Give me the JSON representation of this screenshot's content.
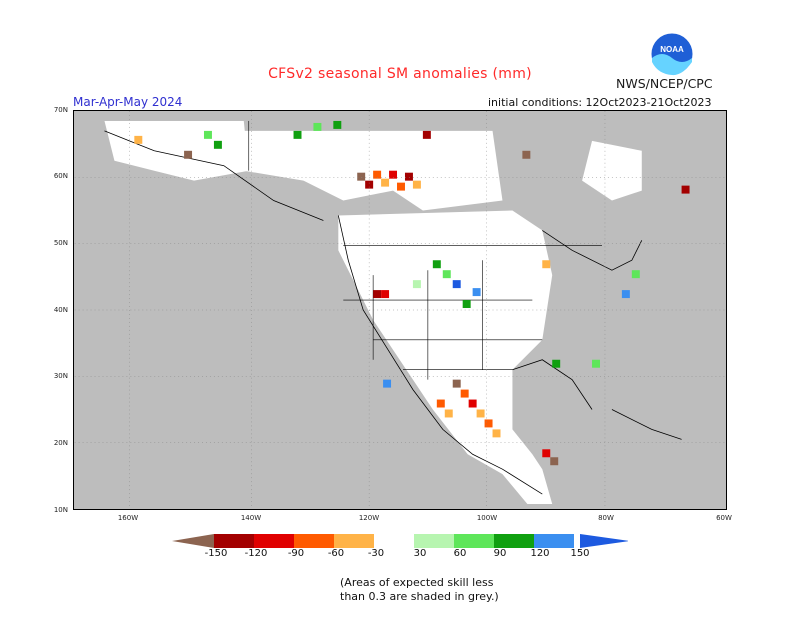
{
  "header": {
    "title": "CFSv2 seasonal SM anomalies (mm)",
    "org": "NWS/NCEP/CPC",
    "period": "Mar-Apr-May 2024",
    "initial_conditions": "initial conditions: 12Oct2023-21Oct2023",
    "logo_text": "NOAA"
  },
  "axes": {
    "lat_labels": [
      "70N",
      "60N",
      "50N",
      "40N",
      "30N",
      "20N",
      "10N"
    ],
    "lon_labels": [
      "160W",
      "140W",
      "120W",
      "100W",
      "80W",
      "60W"
    ]
  },
  "legend": {
    "ticks": [
      "-150",
      "-120",
      "-90",
      "-60",
      "-30",
      "30",
      "60",
      "90",
      "120",
      "150"
    ],
    "colors": [
      "#8c6450",
      "#a30000",
      "#e00000",
      "#ff5a00",
      "#ffb347",
      "#ffffff",
      "#b7f5b0",
      "#5ee65a",
      "#10a010",
      "#3b8ff0",
      "#1d5ae0"
    ]
  },
  "note": {
    "line1": "(Areas of expected skill less",
    "line2": "than 0.3 are shaded in grey.)"
  },
  "colors": {
    "skill_mask": "#bdbdbd",
    "title": "#ff2a2a",
    "period": "#3030d0"
  }
}
